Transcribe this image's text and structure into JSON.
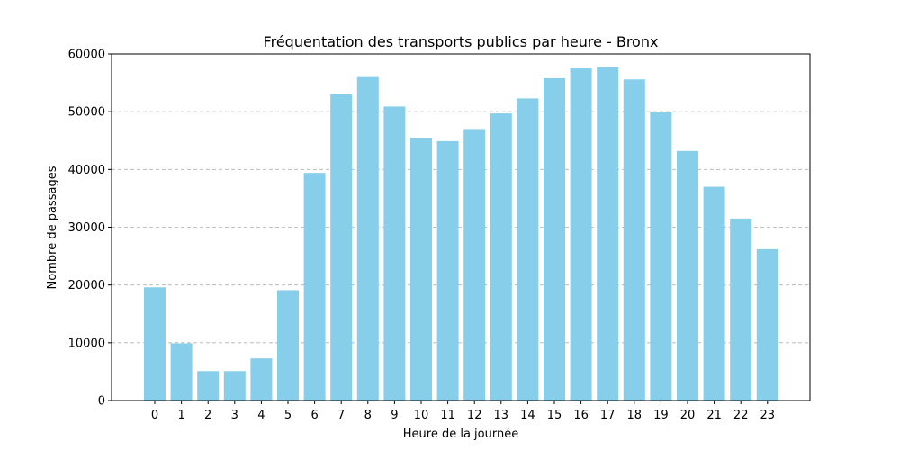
{
  "chart_data": {
    "type": "bar",
    "title": "Fréquentation des transports publics par heure - Bronx",
    "xlabel": "Heure de la journée",
    "ylabel": "Nombre de passages",
    "categories": [
      "0",
      "1",
      "2",
      "3",
      "4",
      "5",
      "6",
      "7",
      "8",
      "9",
      "10",
      "11",
      "12",
      "13",
      "14",
      "15",
      "16",
      "17",
      "18",
      "19",
      "20",
      "21",
      "22",
      "23"
    ],
    "values": [
      19600,
      9900,
      5100,
      5100,
      7300,
      19100,
      39400,
      53000,
      56000,
      50900,
      45500,
      44900,
      47000,
      49700,
      52300,
      55800,
      57500,
      57700,
      55600,
      49900,
      43200,
      37000,
      31500,
      26200
    ],
    "ylim": [
      0,
      60000
    ],
    "yticks": [
      0,
      10000,
      20000,
      30000,
      40000,
      50000,
      60000
    ],
    "grid": "y-dashed",
    "bar_color": "#87CEEB"
  }
}
